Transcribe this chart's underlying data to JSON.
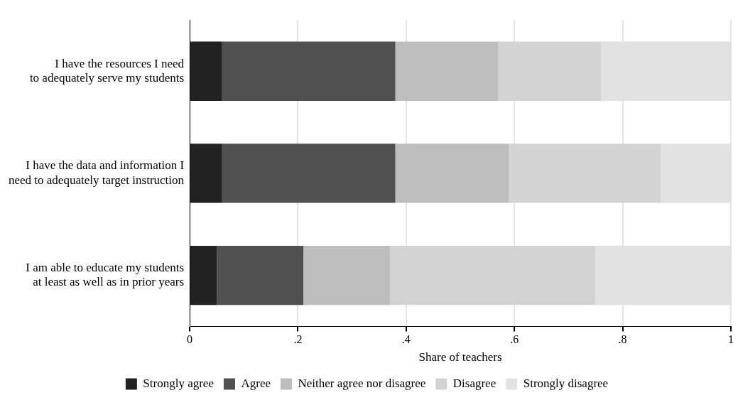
{
  "chart_data": {
    "type": "bar",
    "orientation": "horizontal",
    "stacked": true,
    "xlabel": "Share of teachers",
    "categories": [
      "I have the resources I need to adequately serve my students",
      "I have the data and information I need to adequately target instruction",
      "I am able to educate my students at least as well as in prior years"
    ],
    "series": [
      {
        "name": "Strongly agree",
        "color": "#222222",
        "values": [
          0.06,
          0.06,
          0.05
        ]
      },
      {
        "name": "Agree",
        "color": "#505050",
        "values": [
          0.32,
          0.32,
          0.16
        ]
      },
      {
        "name": "Neither agree nor disagree",
        "color": "#bdbdbd",
        "values": [
          0.19,
          0.21,
          0.16
        ]
      },
      {
        "name": "Disagree",
        "color": "#d3d3d3",
        "values": [
          0.19,
          0.28,
          0.38
        ]
      },
      {
        "name": "Strongly disagree",
        "color": "#e2e2e2",
        "values": [
          0.24,
          0.13,
          0.25
        ]
      }
    ],
    "xlim": [
      0,
      1
    ],
    "xticks": [
      0,
      {
        "value": 0.2,
        "label": ".2"
      },
      {
        "value": 0.4,
        "label": ".4"
      },
      {
        "value": 0.6,
        "label": ".6"
      },
      {
        "value": 0.8,
        "label": ".8"
      },
      1
    ],
    "grid": "x",
    "legend": "bottom"
  }
}
